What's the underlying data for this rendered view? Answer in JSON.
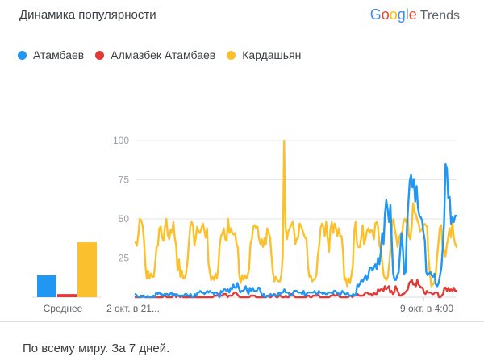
{
  "header": {
    "title": "Динамика популярности"
  },
  "brand": {
    "google_letters": [
      "G",
      "o",
      "o",
      "g",
      "l",
      "e"
    ],
    "trends": "Trends"
  },
  "legend": [
    {
      "label": "Атамбаев",
      "color": "#2196f3"
    },
    {
      "label": "Алмазбек Атамбаев",
      "color": "#e53935"
    },
    {
      "label": "Кардашьян",
      "color": "#fbc02d"
    }
  ],
  "footer": {
    "text": "По всему миру. За 7 дней."
  },
  "chart_data": [
    {
      "type": "bar",
      "categories": [
        "Среднее"
      ],
      "series": [
        {
          "name": "Атамбаев",
          "values": [
            14
          ]
        },
        {
          "name": "Алмазбек Атамбаев",
          "values": [
            2
          ]
        },
        {
          "name": "Кардашьян",
          "values": [
            35
          ]
        }
      ],
      "xlabel": "Среднее",
      "ylim": [
        0,
        100
      ]
    },
    {
      "type": "line",
      "x_tick_labels": [
        "2 окт. в 21...",
        "9 окт. в 4:00"
      ],
      "y_ticks": [
        25,
        50,
        75,
        100
      ],
      "ylim": [
        0,
        100
      ],
      "grid": true,
      "series": [
        {
          "name": "Атамбаев",
          "color": "#2196f3",
          "values": [
            2,
            1,
            0,
            0,
            1,
            0,
            1,
            0,
            0,
            1,
            0,
            0,
            0,
            1,
            0,
            3,
            2,
            3,
            2,
            2,
            1,
            2,
            2,
            2,
            1,
            2,
            3,
            1,
            2,
            1,
            2,
            1,
            1,
            1,
            1,
            1,
            2,
            2,
            1,
            1,
            2,
            0,
            0,
            2,
            1,
            3,
            3,
            4,
            3,
            3,
            2,
            3,
            4,
            3,
            4,
            3,
            3,
            2,
            3,
            3,
            1,
            0,
            4,
            3,
            5,
            5,
            4,
            5,
            3,
            6,
            5,
            8,
            6,
            6,
            9,
            6,
            3,
            4,
            4,
            5,
            7,
            4,
            2,
            6,
            4,
            6,
            4,
            4,
            4,
            6,
            6,
            3,
            1,
            2,
            0,
            0,
            1,
            1,
            2,
            1,
            1,
            2,
            1,
            1,
            3,
            2,
            3,
            3,
            5,
            3,
            3,
            3,
            1,
            1,
            2,
            4,
            4,
            4,
            3,
            3,
            3,
            2,
            4,
            1,
            2,
            3,
            3,
            3,
            3,
            3,
            4,
            2,
            2,
            4,
            3,
            3,
            2,
            3,
            2,
            2,
            3,
            3,
            3,
            2,
            4,
            4,
            3,
            3,
            1,
            2,
            4,
            3,
            2,
            2,
            3,
            1,
            1,
            1,
            2,
            1,
            2,
            8,
            7,
            9,
            11,
            10,
            12,
            14,
            11,
            14,
            19,
            19,
            17,
            19,
            21,
            18,
            25,
            21,
            29,
            41,
            34,
            53,
            62,
            56,
            48,
            59,
            35,
            15,
            11,
            11,
            14,
            16,
            29,
            41,
            31,
            15,
            16,
            45,
            60,
            74,
            78,
            70,
            75,
            61,
            71,
            57,
            52,
            51,
            49,
            41,
            36,
            16,
            14,
            15,
            16,
            14,
            13,
            15,
            8,
            7,
            9,
            14,
            19,
            32,
            49,
            85,
            82,
            63,
            64,
            47,
            51,
            48,
            52,
            52
          ]
        },
        {
          "name": "Алмазбек Атамбаев",
          "color": "#e53935",
          "values": [
            0,
            0,
            0,
            0,
            0,
            1,
            1,
            0,
            0,
            0,
            0,
            0,
            0,
            0,
            0,
            0,
            0,
            0,
            0,
            0,
            0,
            1,
            1,
            0,
            0,
            0,
            0,
            0,
            1,
            2,
            0,
            1,
            1,
            0,
            1,
            0,
            0,
            0,
            0,
            0,
            0,
            0,
            0,
            0,
            0,
            0,
            0,
            0,
            0,
            0,
            0,
            0,
            0,
            0,
            0,
            0,
            0,
            0,
            1,
            1,
            1,
            2,
            2,
            1,
            1,
            2,
            2,
            2,
            0,
            1,
            1,
            1,
            2,
            3,
            3,
            2,
            1,
            0,
            0,
            0,
            0,
            0,
            0,
            0,
            0,
            1,
            1,
            1,
            1,
            0,
            0,
            0,
            0,
            0,
            0,
            0,
            0,
            1,
            1,
            0,
            0,
            1,
            2,
            1,
            0,
            0,
            1,
            1,
            0,
            0,
            0,
            1,
            0,
            0,
            2,
            2,
            1,
            1,
            0,
            0,
            0,
            0,
            0,
            0,
            0,
            0,
            0,
            1,
            1,
            0,
            0,
            1,
            1,
            1,
            1,
            2,
            0,
            0,
            0,
            0,
            0,
            0,
            0,
            0,
            1,
            1,
            2,
            1,
            1,
            2,
            1,
            0,
            0,
            0,
            0,
            0,
            0,
            0,
            1,
            1,
            0,
            1,
            1,
            2,
            2,
            1,
            1,
            1,
            1,
            2,
            3,
            3,
            2,
            2,
            2,
            1,
            3,
            2,
            2,
            5,
            4,
            5,
            5,
            4,
            7,
            5,
            6,
            7,
            3,
            4,
            2,
            3,
            7,
            5,
            3,
            1,
            1,
            2,
            2,
            3,
            4,
            5,
            9,
            10,
            11,
            8,
            8,
            7,
            11,
            8,
            7,
            6,
            6,
            3,
            2,
            4,
            3,
            3,
            3,
            2,
            2,
            3,
            3,
            3,
            0,
            0,
            1,
            2,
            6,
            6,
            4,
            6,
            4,
            5,
            4,
            6,
            4,
            4
          ]
        },
        {
          "name": "Кардашьян",
          "color": "#fbc02d",
          "values": [
            35,
            33,
            40,
            50,
            49,
            46,
            37,
            21,
            12,
            17,
            12,
            15,
            13,
            13,
            21,
            32,
            33,
            44,
            45,
            38,
            36,
            45,
            50,
            40,
            37,
            43,
            41,
            48,
            38,
            33,
            17,
            24,
            13,
            17,
            12,
            12,
            15,
            22,
            34,
            45,
            48,
            46,
            33,
            38,
            45,
            42,
            41,
            44,
            47,
            43,
            38,
            44,
            22,
            16,
            11,
            13,
            11,
            15,
            12,
            18,
            33,
            39,
            41,
            44,
            37,
            36,
            50,
            41,
            44,
            41,
            40,
            41,
            34,
            32,
            14,
            9,
            14,
            11,
            14,
            12,
            14,
            18,
            34,
            37,
            45,
            46,
            44,
            45,
            38,
            34,
            37,
            32,
            38,
            34,
            44,
            41,
            38,
            26,
            16,
            10,
            13,
            11,
            10,
            10,
            14,
            26,
            100,
            45,
            37,
            42,
            44,
            46,
            48,
            43,
            34,
            37,
            38,
            47,
            46,
            43,
            40,
            38,
            37,
            20,
            13,
            14,
            10,
            11,
            12,
            14,
            26,
            33,
            44,
            47,
            45,
            39,
            48,
            38,
            29,
            43,
            48,
            41,
            47,
            44,
            39,
            44,
            39,
            39,
            29,
            11,
            12,
            7,
            12,
            9,
            14,
            20,
            42,
            48,
            34,
            32,
            32,
            38,
            46,
            34,
            37,
            42,
            44,
            41,
            43,
            42,
            37,
            47,
            48,
            45,
            33,
            30,
            22,
            14,
            12,
            11,
            13,
            22,
            32,
            47,
            50,
            43,
            38,
            32,
            38,
            40,
            39,
            48,
            50,
            48,
            52,
            39,
            37,
            45,
            60,
            54,
            53,
            49,
            47,
            42,
            43,
            45,
            47,
            46,
            45,
            25,
            15,
            7,
            8,
            9,
            13,
            25,
            34,
            44,
            46,
            32,
            30,
            26,
            33,
            38,
            44,
            38,
            48,
            38,
            34,
            32
          ]
        }
      ]
    }
  ]
}
